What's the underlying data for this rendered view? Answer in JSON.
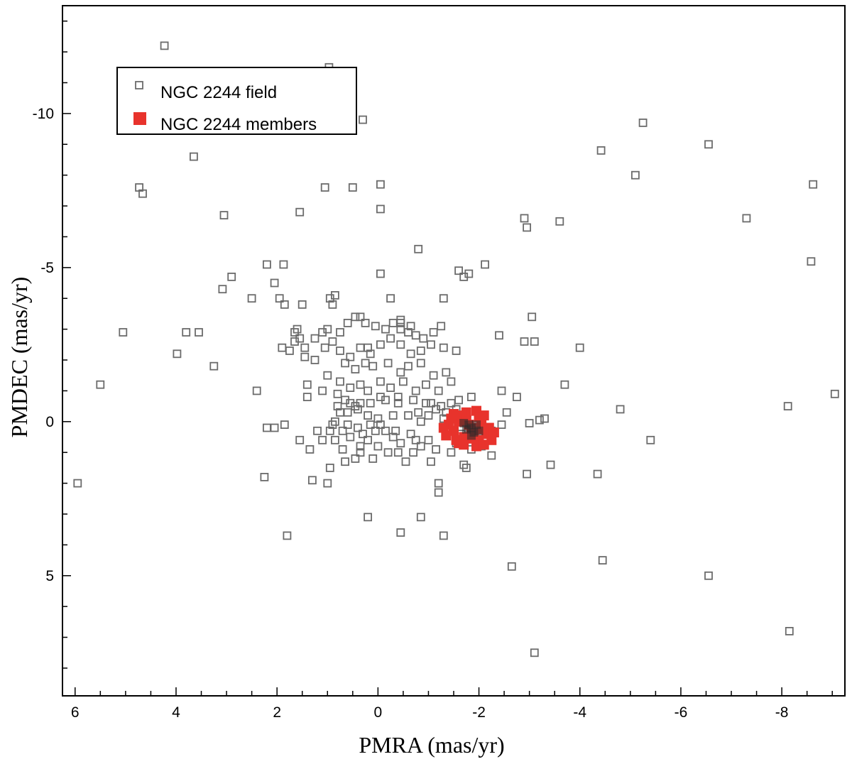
{
  "chart_data": {
    "type": "scatter",
    "xlabel": "PMRA (mas/yr)",
    "ylabel": "PMDEC (mas/yr)",
    "xlim": [
      6.25,
      -9.25
    ],
    "ylim": [
      -13.5,
      8.9
    ],
    "x_ticks": [
      6,
      4,
      2,
      0,
      -2,
      -4,
      -6,
      -8
    ],
    "x_tick_labels": [
      "6",
      "4",
      "2",
      "0",
      "-2",
      "-4",
      "-6",
      "-8"
    ],
    "y_ticks": [
      -10,
      -5,
      0,
      5
    ],
    "y_tick_labels": [
      "-10",
      "-5",
      "0",
      "5"
    ],
    "x_minor_step": 0.5,
    "y_minor_step": 1,
    "x_reversed": true,
    "y_reversed": true,
    "grid": false,
    "legend_position": "top-left",
    "legend": [
      {
        "label": "NGC 2244 field",
        "marker": "open-square",
        "color": "#6b6b6b"
      },
      {
        "label": "NGC 2244 members",
        "marker": "filled-square",
        "color": "#e8332c"
      }
    ],
    "series": [
      {
        "name": "NGC 2244 field",
        "marker": "open-square",
        "color": "#6b6b6b",
        "points": [
          [
            4.23,
            -12.2
          ],
          [
            0.97,
            -11.5
          ],
          [
            0.3,
            -9.8
          ],
          [
            -5.25,
            -9.7
          ],
          [
            -6.55,
            -9.0
          ],
          [
            -4.42,
            -8.8
          ],
          [
            3.65,
            -8.6
          ],
          [
            -5.1,
            -8.0
          ],
          [
            4.73,
            -7.6
          ],
          [
            4.66,
            -7.4
          ],
          [
            1.05,
            -7.6
          ],
          [
            0.5,
            -7.6
          ],
          [
            -0.05,
            -7.7
          ],
          [
            -8.62,
            -7.7
          ],
          [
            3.05,
            -6.7
          ],
          [
            1.55,
            -6.8
          ],
          [
            -0.05,
            -6.9
          ],
          [
            -2.9,
            -6.6
          ],
          [
            -3.6,
            -6.5
          ],
          [
            -7.3,
            -6.6
          ],
          [
            -2.95,
            -6.3
          ],
          [
            -0.8,
            -5.6
          ],
          [
            -8.58,
            -5.2
          ],
          [
            2.2,
            -5.1
          ],
          [
            1.87,
            -5.1
          ],
          [
            -2.12,
            -5.1
          ],
          [
            -1.6,
            -4.9
          ],
          [
            -1.8,
            -4.8
          ],
          [
            2.05,
            -4.5
          ],
          [
            2.9,
            -4.7
          ],
          [
            -0.05,
            -4.8
          ],
          [
            -1.7,
            -4.7
          ],
          [
            3.08,
            -4.3
          ],
          [
            2.5,
            -4.0
          ],
          [
            1.95,
            -4.0
          ],
          [
            0.95,
            -4.0
          ],
          [
            0.85,
            -4.1
          ],
          [
            -1.3,
            -4.0
          ],
          [
            -0.25,
            -4.0
          ],
          [
            1.5,
            -3.8
          ],
          [
            0.9,
            -3.8
          ],
          [
            1.85,
            -3.8
          ],
          [
            -3.05,
            -3.4
          ],
          [
            3.8,
            -2.9
          ],
          [
            3.55,
            -2.9
          ],
          [
            5.05,
            -2.9
          ],
          [
            -2.4,
            -2.8
          ],
          [
            3.98,
            -2.2
          ],
          [
            3.25,
            -1.8
          ],
          [
            -4.0,
            -2.4
          ],
          [
            -3.1,
            -2.6
          ],
          [
            -2.9,
            -2.6
          ],
          [
            5.5,
            -1.2
          ],
          [
            2.4,
            -1.0
          ],
          [
            -9.05,
            -0.9
          ],
          [
            -8.12,
            -0.5
          ],
          [
            -4.8,
            -0.4
          ],
          [
            -3.7,
            -1.2
          ],
          [
            -2.45,
            -1.0
          ],
          [
            -2.75,
            -0.8
          ],
          [
            -2.55,
            -0.3
          ],
          [
            -3.3,
            -0.1
          ],
          [
            -3.2,
            -0.05
          ],
          [
            -3.0,
            0.05
          ],
          [
            -2.45,
            0.1
          ],
          [
            -2.25,
            0.3
          ],
          [
            -5.4,
            0.6
          ],
          [
            5.95,
            2.0
          ],
          [
            2.25,
            1.8
          ],
          [
            -3.42,
            1.4
          ],
          [
            -2.95,
            1.7
          ],
          [
            -4.35,
            1.7
          ],
          [
            -1.75,
            1.5
          ],
          [
            -1.05,
            1.3
          ],
          [
            1.0,
            2.0
          ],
          [
            1.3,
            1.9
          ],
          [
            -1.2,
            2.0
          ],
          [
            -1.2,
            2.3
          ],
          [
            0.2,
            3.1
          ],
          [
            -0.45,
            3.6
          ],
          [
            -0.85,
            3.1
          ],
          [
            1.8,
            3.7
          ],
          [
            -1.3,
            3.7
          ],
          [
            -2.65,
            4.7
          ],
          [
            -4.45,
            4.5
          ],
          [
            -6.55,
            5.0
          ],
          [
            -8.15,
            6.8
          ],
          [
            -3.1,
            7.5
          ],
          [
            2.05,
            0.2
          ],
          [
            2.2,
            0.2
          ],
          [
            1.85,
            0.1
          ],
          [
            1.55,
            0.6
          ],
          [
            1.35,
            0.9
          ],
          [
            1.1,
            0.6
          ],
          [
            0.95,
            0.3
          ],
          [
            0.7,
            0.3
          ],
          [
            0.55,
            0.5
          ],
          [
            0.3,
            0.4
          ],
          [
            0.15,
            0.1
          ],
          [
            -0.05,
            0.1
          ],
          [
            -0.15,
            0.3
          ],
          [
            -0.3,
            0.5
          ],
          [
            -0.45,
            0.7
          ],
          [
            -0.65,
            0.4
          ],
          [
            -0.85,
            0.8
          ],
          [
            -1.0,
            0.6
          ],
          [
            -1.15,
            0.9
          ],
          [
            -0.85,
            0.0
          ],
          [
            -1.3,
            -0.1
          ],
          [
            -1.5,
            0.3
          ],
          [
            -1.55,
            0.7
          ],
          [
            -1.45,
            1.0
          ],
          [
            -1.7,
            1.4
          ],
          [
            -0.7,
            1.0
          ],
          [
            -0.55,
            1.3
          ],
          [
            0.45,
            1.2
          ],
          [
            0.7,
            0.9
          ],
          [
            0.85,
            0.6
          ],
          [
            1.2,
            0.3
          ],
          [
            0.9,
            0.1
          ],
          [
            0.6,
            0.1
          ],
          [
            0.4,
            0.2
          ],
          [
            0.2,
            0.6
          ],
          [
            0.0,
            0.8
          ],
          [
            -0.2,
            1.0
          ],
          [
            -0.4,
            1.0
          ],
          [
            0.1,
            1.2
          ],
          [
            0.35,
            0.8
          ],
          [
            0.8,
            -0.9
          ],
          [
            0.65,
            -0.7
          ],
          [
            0.35,
            -0.6
          ],
          [
            0.15,
            -0.6
          ],
          [
            -0.05,
            -0.8
          ],
          [
            -0.15,
            -0.7
          ],
          [
            -0.4,
            -0.8
          ],
          [
            -0.7,
            -0.7
          ],
          [
            -0.95,
            -0.6
          ],
          [
            -1.15,
            -0.4
          ],
          [
            -1.35,
            -0.3
          ],
          [
            -1.45,
            -0.6
          ],
          [
            -1.55,
            -0.4
          ],
          [
            0.6,
            -0.3
          ],
          [
            0.4,
            -0.4
          ],
          [
            0.2,
            -0.2
          ],
          [
            0.0,
            -0.1
          ],
          [
            -0.3,
            -0.2
          ],
          [
            -0.6,
            -0.2
          ],
          [
            -0.8,
            -0.3
          ],
          [
            -1.0,
            -0.2
          ],
          [
            1.6,
            -3.0
          ],
          [
            1.55,
            -2.7
          ],
          [
            1.45,
            -2.4
          ],
          [
            1.25,
            -2.7
          ],
          [
            1.1,
            -2.9
          ],
          [
            1.0,
            -3.0
          ],
          [
            0.75,
            -2.9
          ],
          [
            0.6,
            -3.2
          ],
          [
            0.45,
            -3.4
          ],
          [
            0.25,
            -3.2
          ],
          [
            0.05,
            -3.1
          ],
          [
            -0.15,
            -3.0
          ],
          [
            -0.3,
            -3.2
          ],
          [
            -0.45,
            -3.3
          ],
          [
            -0.6,
            -2.9
          ],
          [
            -0.75,
            -2.8
          ],
          [
            -0.9,
            -2.7
          ],
          [
            -1.1,
            -2.9
          ],
          [
            -1.25,
            -3.1
          ],
          [
            1.75,
            -2.3
          ],
          [
            1.65,
            -2.6
          ],
          [
            1.45,
            -2.1
          ],
          [
            1.25,
            -2.0
          ],
          [
            1.05,
            -2.4
          ],
          [
            0.9,
            -2.6
          ],
          [
            0.75,
            -2.3
          ],
          [
            0.55,
            -2.1
          ],
          [
            0.35,
            -2.4
          ],
          [
            0.15,
            -2.2
          ],
          [
            -0.05,
            -2.5
          ],
          [
            -0.25,
            -2.7
          ],
          [
            -0.45,
            -2.5
          ],
          [
            -0.65,
            -2.2
          ],
          [
            -0.85,
            -2.3
          ],
          [
            -1.05,
            -2.5
          ],
          [
            -1.3,
            -2.4
          ],
          [
            -1.55,
            -2.3
          ],
          [
            0.65,
            -1.9
          ],
          [
            0.45,
            -1.7
          ],
          [
            0.25,
            -1.9
          ],
          [
            0.1,
            -1.8
          ],
          [
            -0.2,
            -1.9
          ],
          [
            -0.45,
            -1.6
          ],
          [
            -0.6,
            -1.8
          ],
          [
            -0.85,
            -1.9
          ],
          [
            -1.1,
            -1.5
          ],
          [
            -1.35,
            -1.6
          ],
          [
            1.4,
            -1.2
          ],
          [
            1.0,
            -1.5
          ],
          [
            0.75,
            -1.3
          ],
          [
            0.55,
            -1.1
          ],
          [
            0.35,
            -1.2
          ],
          [
            0.2,
            -1.0
          ],
          [
            -0.05,
            -1.3
          ],
          [
            -0.25,
            -1.1
          ],
          [
            -0.5,
            -1.3
          ],
          [
            -0.75,
            -1.0
          ],
          [
            -0.95,
            -1.2
          ],
          [
            -1.2,
            -1.0
          ],
          [
            -1.45,
            -1.3
          ],
          [
            1.1,
            -1.0
          ],
          [
            0.45,
            -0.5
          ],
          [
            -0.4,
            -0.6
          ],
          [
            -1.05,
            -0.6
          ],
          [
            -1.25,
            -0.5
          ],
          [
            -1.6,
            -0.7
          ],
          [
            -1.85,
            -0.8
          ],
          [
            1.9,
            -2.4
          ],
          [
            0.95,
            1.5
          ],
          [
            0.65,
            1.3
          ],
          [
            0.35,
            1.0
          ],
          [
            0.05,
            0.3
          ],
          [
            -0.35,
            0.3
          ],
          [
            -0.75,
            0.6
          ],
          [
            -1.4,
            0.2
          ],
          [
            -1.65,
            0.4
          ],
          [
            -1.85,
            0.9
          ],
          [
            -2.05,
            0.8
          ],
          [
            -2.25,
            1.1
          ],
          [
            -1.9,
            0.2
          ],
          [
            0.8,
            -0.5
          ],
          [
            0.55,
            -0.6
          ],
          [
            1.4,
            -0.8
          ],
          [
            0.35,
            -3.4
          ],
          [
            -0.45,
            -3.2
          ],
          [
            -0.45,
            -3.0
          ],
          [
            -0.65,
            -3.1
          ],
          [
            1.65,
            -2.9
          ],
          [
            0.2,
            -2.4
          ],
          [
            0.85,
            0.0
          ],
          [
            0.75,
            -0.3
          ]
        ]
      },
      {
        "name": "NGC 2244 members",
        "marker": "filled-square",
        "color": "#e8332c",
        "center": [
          -1.85,
          0.2
        ],
        "points": [
          [
            -1.85,
            0.2
          ],
          [
            -1.9,
            0.4
          ],
          [
            -1.8,
            0.1
          ],
          [
            -2.0,
            0.6
          ],
          [
            -1.7,
            0.5
          ],
          [
            -1.6,
            0.0
          ],
          [
            -2.1,
            -0.2
          ],
          [
            -1.5,
            0.3
          ],
          [
            -1.4,
            0.1
          ],
          [
            -1.75,
            -0.3
          ],
          [
            -2.05,
            0.0
          ],
          [
            -1.95,
            0.8
          ],
          [
            -2.15,
            0.4
          ],
          [
            -1.6,
            0.7
          ],
          [
            -1.3,
            0.2
          ],
          [
            -1.65,
            -0.2
          ],
          [
            -1.95,
            -0.35
          ],
          [
            -2.2,
            0.2
          ],
          [
            -2.25,
            0.6
          ],
          [
            -1.45,
            -0.1
          ],
          [
            -1.55,
            0.6
          ],
          [
            -2.05,
            0.25
          ],
          [
            -1.85,
            0.55
          ],
          [
            -1.75,
            -0.05
          ],
          [
            -2.3,
            0.35
          ],
          [
            -1.35,
            0.45
          ],
          [
            -2.1,
            0.75
          ],
          [
            -1.7,
            0.75
          ],
          [
            -1.5,
            -0.25
          ],
          [
            -2.0,
            -0.15
          ]
        ],
        "core_points": [
          [
            -1.85,
            0.2
          ],
          [
            -1.9,
            0.35
          ],
          [
            -1.8,
            0.1
          ],
          [
            -1.75,
            0.25
          ],
          [
            -1.95,
            0.1
          ],
          [
            -1.7,
            0.05
          ],
          [
            -2.0,
            0.3
          ],
          [
            -1.85,
            0.45
          ]
        ]
      }
    ]
  }
}
